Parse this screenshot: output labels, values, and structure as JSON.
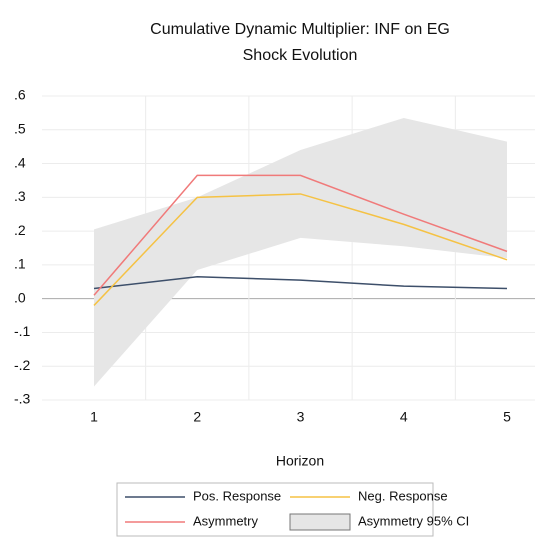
{
  "chart_data": {
    "type": "line",
    "title": "Cumulative Dynamic Multiplier: INF on EG",
    "subtitle": "Shock Evolution",
    "x_label": "Horizon",
    "categories": [
      "1",
      "2",
      "3",
      "4",
      "5"
    ],
    "series": [
      {
        "name": "Pos. Response",
        "color": "#3d4f6a",
        "values": [
          0.03,
          0.065,
          0.055,
          0.037,
          0.03
        ]
      },
      {
        "name": "Neg. Response",
        "color": "#f5c244",
        "values": [
          -0.02,
          0.3,
          0.31,
          0.22,
          0.115
        ]
      },
      {
        "name": "Asymmetry",
        "color": "#f07a7a",
        "values": [
          0.01,
          0.365,
          0.365,
          0.25,
          0.14
        ]
      }
    ],
    "band": {
      "name": "Asymmetry 95% CI",
      "color": "#e6e6e6",
      "lower": [
        -0.26,
        0.085,
        0.18,
        0.155,
        0.12
      ],
      "upper": [
        0.205,
        0.3,
        0.44,
        0.535,
        0.465
      ]
    },
    "ylim": [
      -0.3,
      0.6
    ],
    "yticks": [
      {
        "value": -0.3,
        "label": "-.3"
      },
      {
        "value": -0.2,
        "label": "-.2"
      },
      {
        "value": -0.1,
        "label": "-.1"
      },
      {
        "value": 0,
        "label": ".0"
      },
      {
        "value": 0.1,
        "label": ".1"
      },
      {
        "value": 0.2,
        "label": ".2"
      },
      {
        "value": 0.3,
        "label": ".3"
      },
      {
        "value": 0.4,
        "label": ".4"
      },
      {
        "value": 0.5,
        "label": ".5"
      },
      {
        "value": 0.6,
        "label": ".6"
      }
    ],
    "grid": true,
    "legend": "bottom"
  }
}
